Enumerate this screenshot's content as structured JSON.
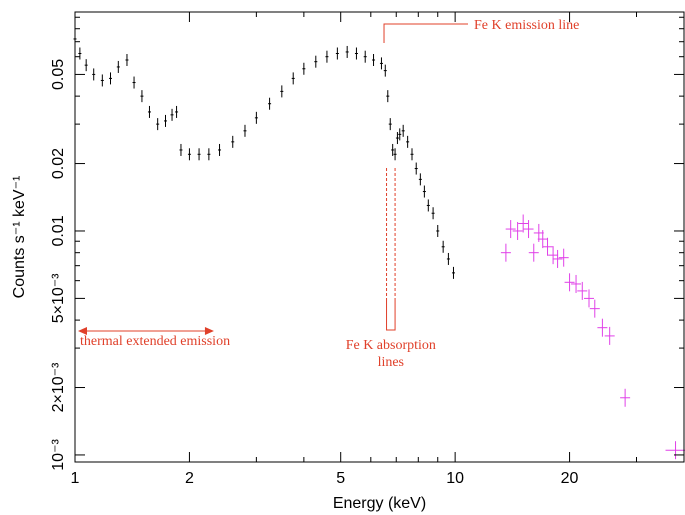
{
  "chart_data": {
    "type": "scatter",
    "xlabel": "Energy (keV)",
    "ylabel": "Counts s⁻¹ keV⁻¹",
    "xscale": "log",
    "yscale": "log",
    "xlim": [
      1,
      40
    ],
    "ylim": [
      0.00093,
      0.095
    ],
    "grid": false,
    "x_ticks": [
      {
        "value": 1,
        "label": "1"
      },
      {
        "value": 2,
        "label": "2"
      },
      {
        "value": 5,
        "label": "5"
      },
      {
        "value": 10,
        "label": "10"
      },
      {
        "value": 20,
        "label": "20"
      }
    ],
    "y_ticks": [
      {
        "value": 0.001,
        "label": "10⁻³"
      },
      {
        "value": 0.002,
        "label": "2×10⁻³"
      },
      {
        "value": 0.005,
        "label": "5×10⁻³"
      },
      {
        "value": 0.01,
        "label": "0.01"
      },
      {
        "value": 0.02,
        "label": "0.02"
      },
      {
        "value": 0.05,
        "label": "0.05"
      }
    ],
    "series": [
      {
        "color": "#000000",
        "points": [
          [
            1.0,
            0.072
          ],
          [
            1.03,
            0.062
          ],
          [
            1.07,
            0.055
          ],
          [
            1.12,
            0.05
          ],
          [
            1.18,
            0.047
          ],
          [
            1.24,
            0.048
          ],
          [
            1.3,
            0.054
          ],
          [
            1.37,
            0.058
          ],
          [
            1.43,
            0.046
          ],
          [
            1.5,
            0.04
          ],
          [
            1.57,
            0.034
          ],
          [
            1.65,
            0.03
          ],
          [
            1.73,
            0.031
          ],
          [
            1.8,
            0.033
          ],
          [
            1.85,
            0.034
          ],
          [
            1.9,
            0.023
          ],
          [
            2.0,
            0.022
          ],
          [
            2.12,
            0.022
          ],
          [
            2.25,
            0.022
          ],
          [
            2.4,
            0.023
          ],
          [
            2.6,
            0.025
          ],
          [
            2.8,
            0.028
          ],
          [
            3.0,
            0.032
          ],
          [
            3.25,
            0.037
          ],
          [
            3.5,
            0.042
          ],
          [
            3.75,
            0.048
          ],
          [
            4.0,
            0.053
          ],
          [
            4.3,
            0.057
          ],
          [
            4.6,
            0.06
          ],
          [
            4.9,
            0.062
          ],
          [
            5.2,
            0.063
          ],
          [
            5.5,
            0.062
          ],
          [
            5.8,
            0.06
          ],
          [
            6.1,
            0.058
          ],
          [
            6.4,
            0.056
          ],
          [
            6.55,
            0.052
          ],
          [
            6.65,
            0.04
          ],
          [
            6.75,
            0.03
          ],
          [
            6.85,
            0.023
          ],
          [
            6.95,
            0.022
          ],
          [
            7.05,
            0.026
          ],
          [
            7.15,
            0.027
          ],
          [
            7.3,
            0.028
          ],
          [
            7.5,
            0.025
          ],
          [
            7.7,
            0.022
          ],
          [
            7.9,
            0.019
          ],
          [
            8.1,
            0.017
          ],
          [
            8.3,
            0.015
          ],
          [
            8.5,
            0.013
          ],
          [
            8.75,
            0.012
          ],
          [
            9.0,
            0.01
          ],
          [
            9.3,
            0.0085
          ],
          [
            9.6,
            0.0075
          ],
          [
            9.9,
            0.0065
          ]
        ]
      },
      {
        "color": "#e040e8",
        "points": [
          [
            13.6,
            0.008
          ],
          [
            14.0,
            0.0102
          ],
          [
            14.6,
            0.01
          ],
          [
            15.1,
            0.0108
          ],
          [
            15.6,
            0.0102
          ],
          [
            16.1,
            0.008
          ],
          [
            16.6,
            0.0098
          ],
          [
            17.0,
            0.0092
          ],
          [
            17.5,
            0.0085
          ],
          [
            18.1,
            0.0078
          ],
          [
            18.6,
            0.0075
          ],
          [
            19.3,
            0.0076
          ],
          [
            20.0,
            0.0059
          ],
          [
            20.8,
            0.0058
          ],
          [
            21.6,
            0.0054
          ],
          [
            22.5,
            0.005
          ],
          [
            23.3,
            0.0045
          ],
          [
            24.4,
            0.0037
          ],
          [
            25.5,
            0.0034
          ],
          [
            28.0,
            0.0018
          ],
          [
            38.0,
            0.00105
          ]
        ]
      }
    ],
    "annotations": [
      {
        "id": "fe-k-emission",
        "lines": [
          "Fe K emission line"
        ]
      },
      {
        "id": "fe-k-absorption",
        "lines": [
          "Fe K absorption",
          "lines"
        ]
      },
      {
        "id": "thermal",
        "lines": [
          "thermal extended emission"
        ]
      }
    ]
  }
}
